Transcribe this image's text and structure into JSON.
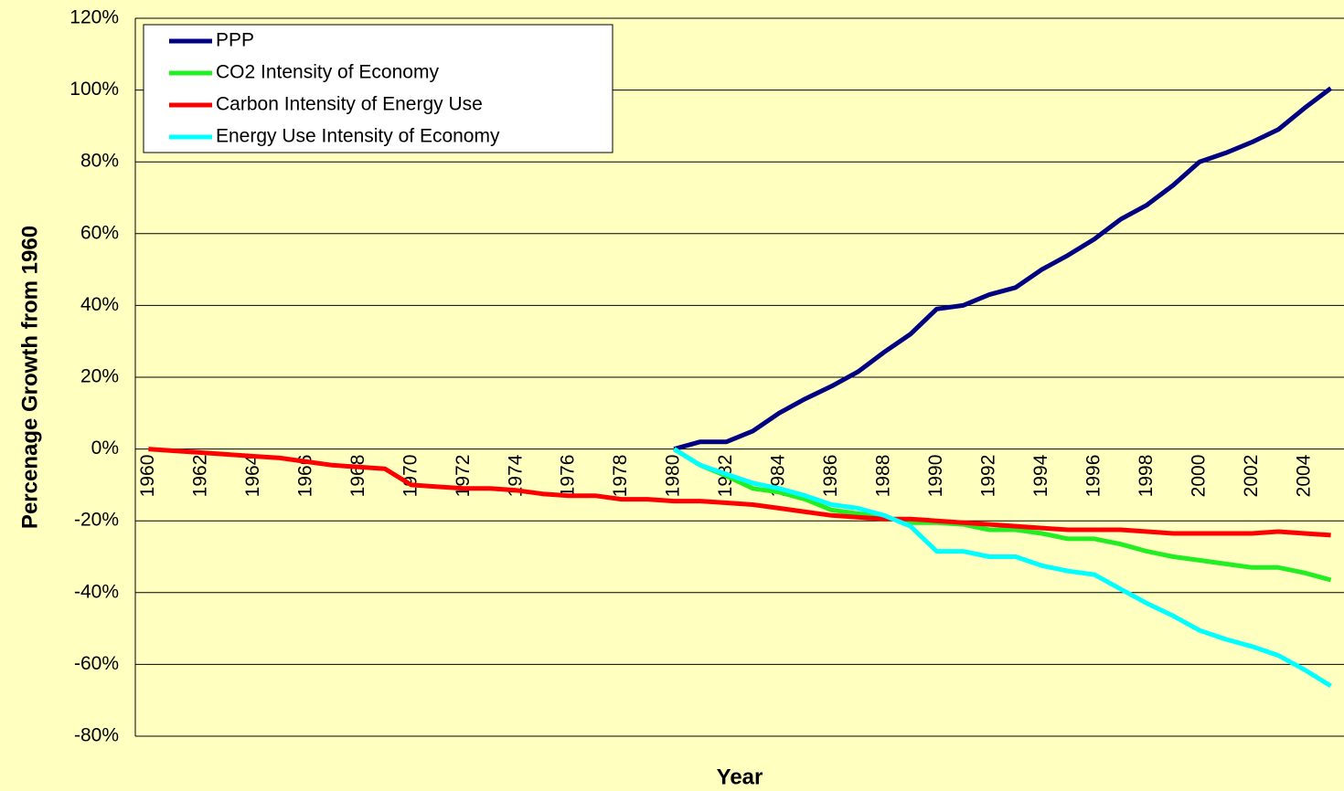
{
  "chart_data": {
    "type": "line",
    "ylabel": "Percenage Growth from 1960",
    "xlabel": "Year",
    "categories": [
      "1960",
      null,
      "1962",
      null,
      "1964",
      null,
      "1966",
      null,
      "1968",
      null,
      "1970",
      null,
      "1972",
      null,
      "1974",
      null,
      "1976",
      null,
      "1978",
      null,
      "1980",
      null,
      "1982",
      null,
      "1984",
      null,
      "1986",
      null,
      "1988",
      null,
      "1990",
      null,
      "1992",
      null,
      "1994",
      null,
      "1996",
      null,
      "1998",
      null,
      "2000",
      null,
      "2002",
      null,
      "2004",
      null
    ],
    "series": [
      {
        "name": "PPP",
        "color": "#000080",
        "values": [
          null,
          null,
          null,
          null,
          null,
          null,
          null,
          null,
          null,
          null,
          null,
          null,
          null,
          null,
          null,
          null,
          null,
          null,
          null,
          null,
          0,
          2,
          2,
          5,
          10,
          14,
          17.5,
          21.5,
          27,
          32,
          39,
          40,
          43,
          45,
          50,
          54,
          58.5,
          64,
          68,
          73.5,
          80,
          82.5,
          85.5,
          89,
          95,
          100.5
        ]
      },
      {
        "name": "CO2 Intensity of Economy",
        "color": "#22ee22",
        "values": [
          null,
          null,
          null,
          null,
          null,
          null,
          null,
          null,
          null,
          null,
          null,
          null,
          null,
          null,
          null,
          null,
          null,
          null,
          null,
          null,
          0,
          -4.5,
          -7.5,
          -11,
          -12,
          -14,
          -17,
          -18,
          -19,
          -20.5,
          -20.5,
          -21,
          -22.5,
          -22.5,
          -23.5,
          -25,
          -25,
          -26.5,
          -28.5,
          -30,
          -31,
          -32,
          -33,
          -33,
          -34.5,
          -36.5
        ]
      },
      {
        "name": "Carbon Intensity of Energy Use",
        "color": "#ff0000",
        "values": [
          0,
          -0.5,
          -1,
          -1.5,
          -2,
          -2.5,
          -3.5,
          -4.5,
          -5,
          -5.5,
          -10,
          -10.5,
          -11,
          -11,
          -11.5,
          -12.5,
          -13,
          -13,
          -14,
          -14,
          -14.5,
          -14.5,
          -15,
          -15.5,
          -16.5,
          -17.5,
          -18.5,
          -19,
          -19.5,
          -19.5,
          -20,
          -20.5,
          -21,
          -21.5,
          -22,
          -22.5,
          -22.5,
          -22.5,
          -23,
          -23.5,
          -23.5,
          -23.5,
          -23.5,
          -23,
          -23.5,
          -24
        ]
      },
      {
        "name": "Energy Use Intensity of Economy",
        "color": "#00ffff",
        "values": [
          null,
          null,
          null,
          null,
          null,
          null,
          null,
          null,
          null,
          null,
          null,
          null,
          null,
          null,
          null,
          null,
          null,
          null,
          null,
          null,
          0,
          -4.5,
          -7,
          -9.5,
          -11,
          -13,
          -15.5,
          -16.5,
          -18.5,
          -21.5,
          -28.5,
          -28.5,
          -30,
          -30,
          -32.5,
          -34,
          -35,
          -39,
          -43,
          -46.5,
          -50.5,
          -53,
          -55,
          -57.5,
          -61.5,
          -66
        ]
      }
    ],
    "ylim": [
      -80,
      120
    ],
    "yticks": [
      {
        "value": -80,
        "label": "-80%"
      },
      {
        "value": -60,
        "label": "-60%"
      },
      {
        "value": -40,
        "label": "-40%"
      },
      {
        "value": -20,
        "label": "-20%"
      },
      {
        "value": 0,
        "label": "0%"
      },
      {
        "value": 20,
        "label": "20%"
      },
      {
        "value": 40,
        "label": "40%"
      },
      {
        "value": 60,
        "label": "60%"
      },
      {
        "value": 80,
        "label": "80%"
      },
      {
        "value": 100,
        "label": "100%"
      },
      {
        "value": 120,
        "label": "120%"
      }
    ],
    "grid": true,
    "legend": "top-left"
  }
}
